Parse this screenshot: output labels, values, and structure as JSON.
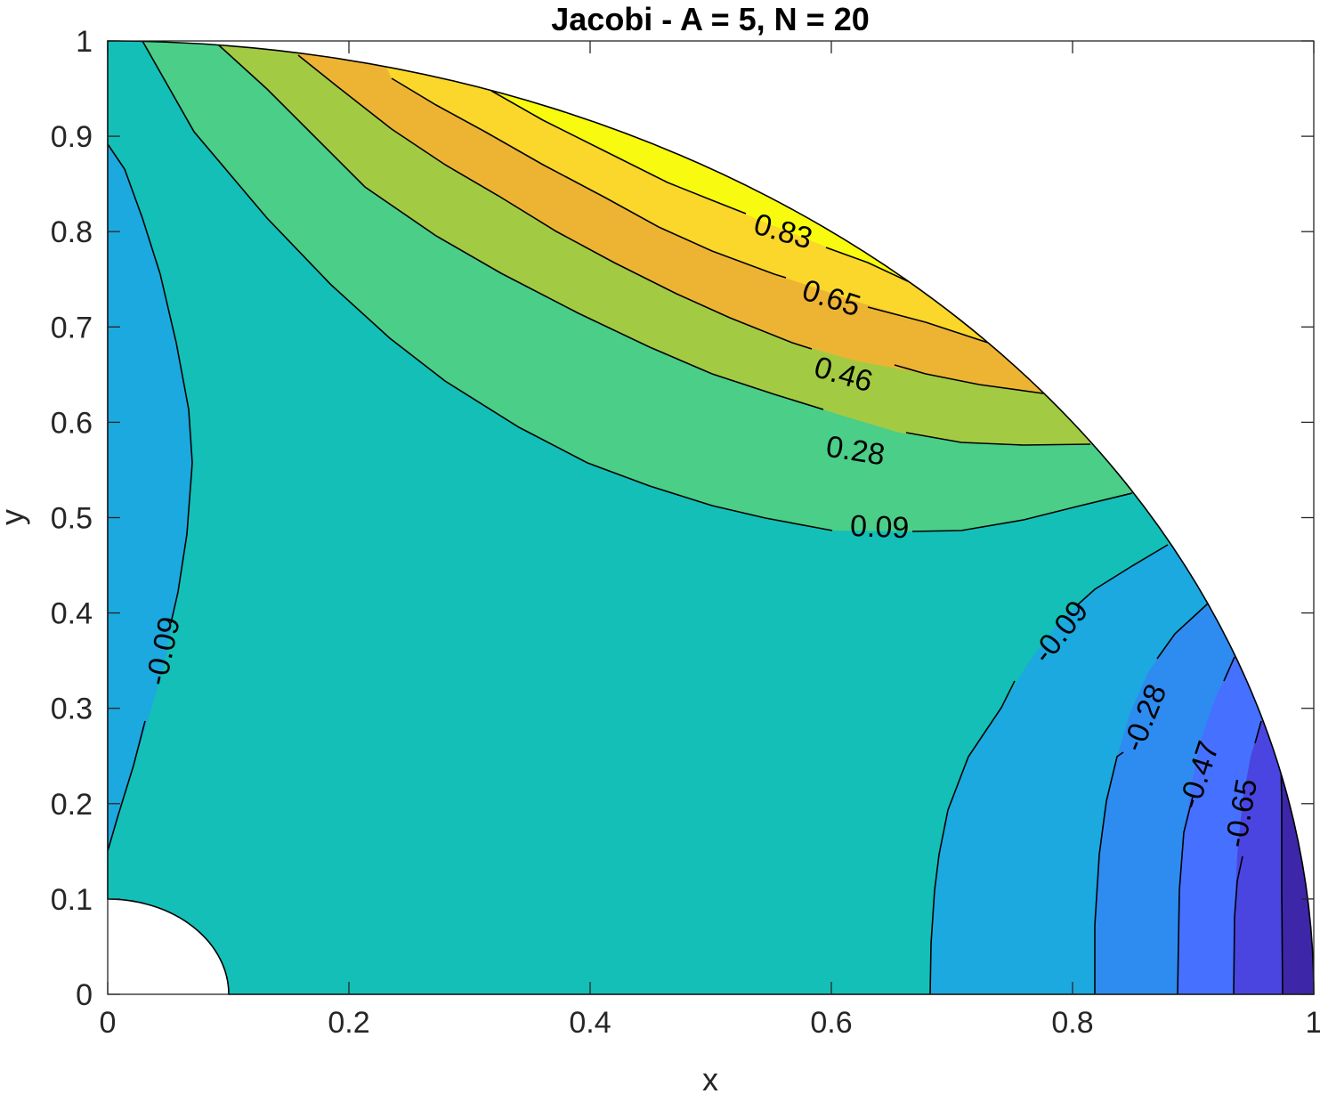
{
  "chart_data": {
    "type": "contour",
    "title": "Jacobi - A = 5, N = 20",
    "xlabel": "x",
    "ylabel": "y",
    "xlim": [
      0,
      1
    ],
    "ylim": [
      0,
      1
    ],
    "x_ticks": [
      "0",
      "0.2",
      "0.4",
      "0.6",
      "0.8",
      "1"
    ],
    "y_ticks": [
      "0",
      "0.1",
      "0.2",
      "0.3",
      "0.4",
      "0.5",
      "0.6",
      "0.7",
      "0.8",
      "0.9",
      "1"
    ],
    "domain": "quarter annulus, inner radius 0.1, outer radius 1",
    "levels": [
      -0.83,
      -0.65,
      -0.47,
      -0.28,
      -0.09,
      0.09,
      0.28,
      0.46,
      0.65,
      0.83
    ],
    "band_colors": [
      "#3e26a8",
      "#4a45e0",
      "#4670ff",
      "#2e8cf0",
      "#1ca9df",
      "#14bfb7",
      "#4ace88",
      "#a3ca43",
      "#edb434",
      "#fad72a",
      "#f8fa10"
    ],
    "contour_labels": [
      {
        "text": "0.83",
        "x": 0.56,
        "y": 0.8
      },
      {
        "text": "0.65",
        "x": 0.6,
        "y": 0.73
      },
      {
        "text": "0.46",
        "x": 0.61,
        "y": 0.65
      },
      {
        "text": "0.28",
        "x": 0.62,
        "y": 0.57
      },
      {
        "text": "0.09",
        "x": 0.64,
        "y": 0.49
      },
      {
        "text": "-0.09",
        "x": 0.046,
        "y": 0.36
      },
      {
        "text": "-0.09",
        "x": 0.79,
        "y": 0.38
      },
      {
        "text": "-0.28",
        "x": 0.86,
        "y": 0.29
      },
      {
        "text": "-0.47",
        "x": 0.905,
        "y": 0.23
      },
      {
        "text": "-0.65",
        "x": 0.94,
        "y": 0.19
      }
    ]
  }
}
